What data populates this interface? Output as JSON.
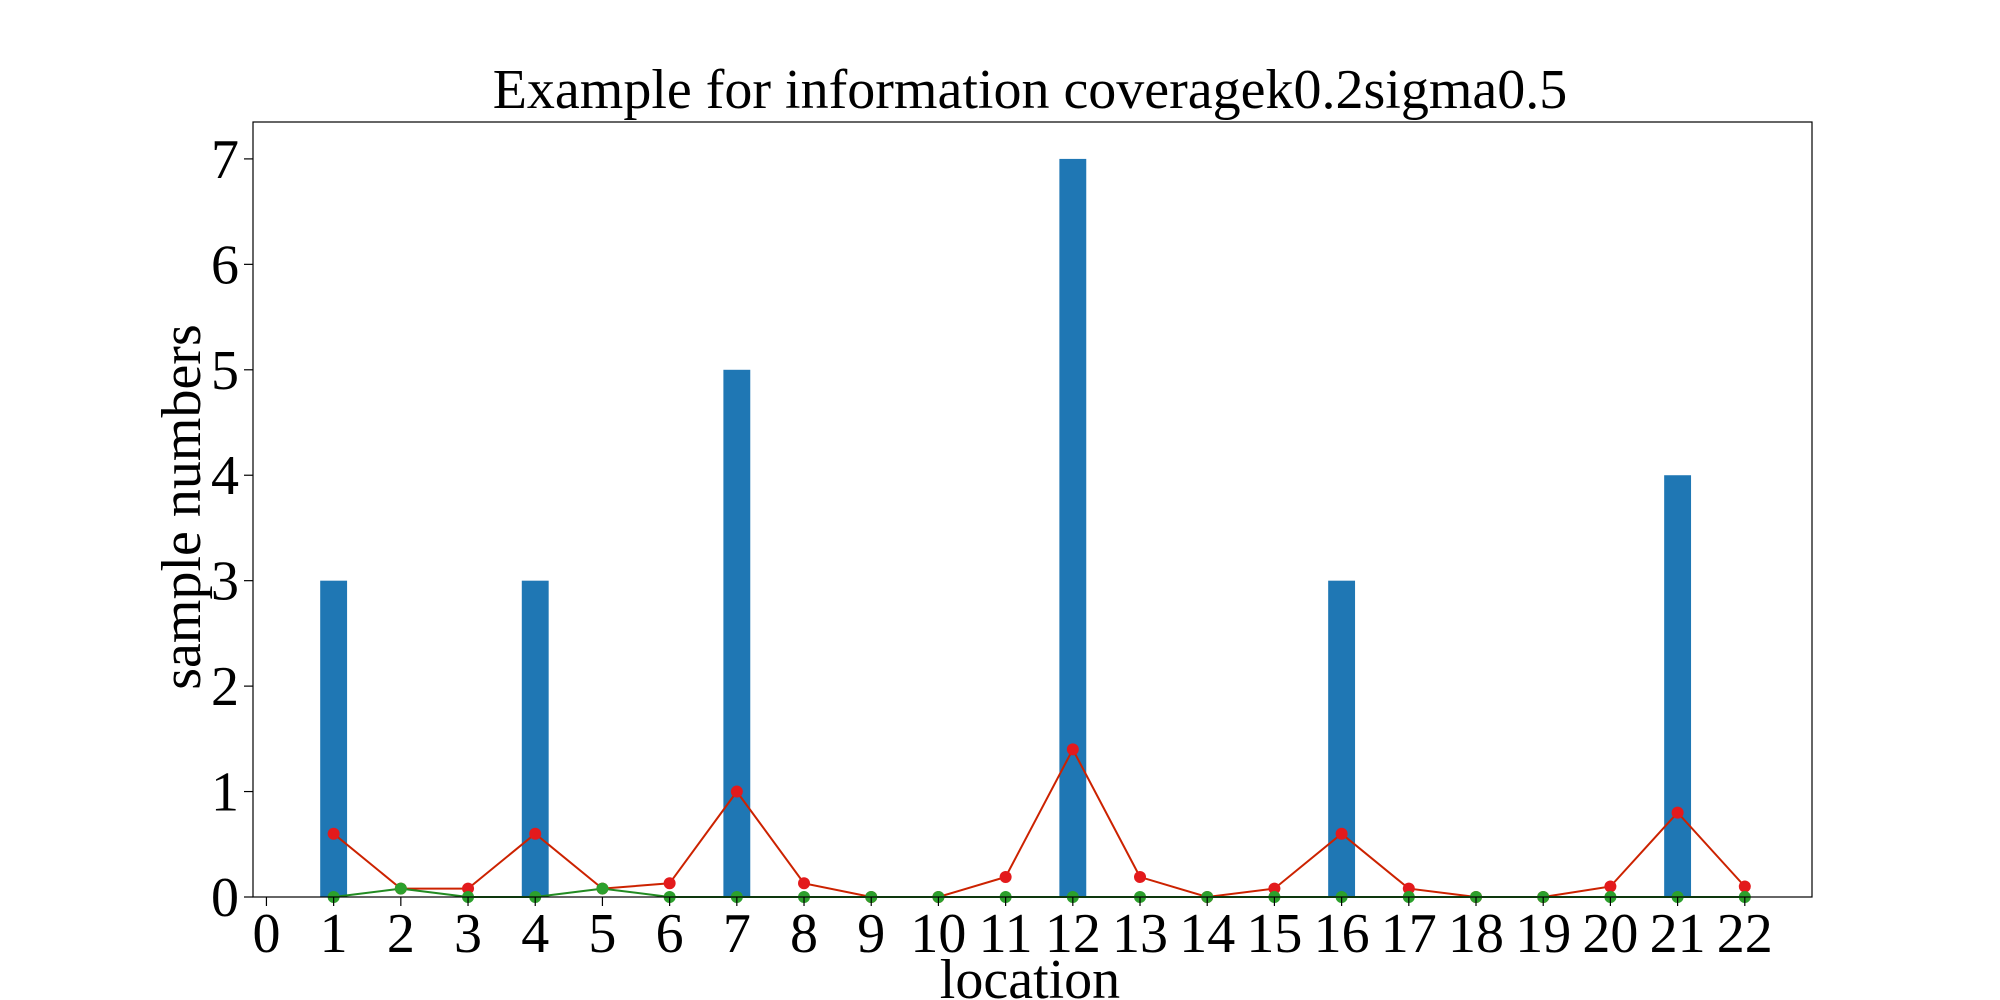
{
  "chart_data": {
    "type": "bar",
    "title": "Example for information coveragek0.2sigma0.5",
    "xlabel": "location",
    "ylabel": "sample numbers",
    "x": [
      0,
      1,
      2,
      3,
      4,
      5,
      6,
      7,
      8,
      9,
      10,
      11,
      12,
      13,
      14,
      15,
      16,
      17,
      18,
      19,
      20,
      21,
      22
    ],
    "xlim": [
      -0.2,
      23
    ],
    "ylim": [
      0,
      7.35
    ],
    "yticks": [
      0,
      1,
      2,
      3,
      4,
      5,
      6,
      7
    ],
    "grid": false,
    "bars": {
      "name": "sample numbers",
      "color": "#1f77b4",
      "width": 0.4,
      "points": [
        {
          "x": 1,
          "y": 3
        },
        {
          "x": 4,
          "y": 3
        },
        {
          "x": 7,
          "y": 5
        },
        {
          "x": 12,
          "y": 7
        },
        {
          "x": 16,
          "y": 3
        },
        {
          "x": 21,
          "y": 4
        }
      ]
    },
    "series": [
      {
        "name": "red line",
        "type": "line",
        "color": "#e31a1c",
        "line_color": "#cc2200",
        "marker": "circle",
        "x": [
          1,
          2,
          3,
          4,
          5,
          6,
          7,
          8,
          9,
          10,
          11,
          12,
          13,
          14,
          15,
          16,
          17,
          18,
          19,
          20,
          21,
          22
        ],
        "values": [
          0.6,
          0.08,
          0.08,
          0.6,
          0.08,
          0.13,
          1.0,
          0.13,
          0,
          0,
          0.19,
          1.4,
          0.19,
          0,
          0.08,
          0.6,
          0.08,
          0,
          0,
          0.1,
          0.8,
          0.1
        ]
      },
      {
        "name": "green line",
        "type": "line",
        "color": "#2ca02c",
        "line_color": "#228b22",
        "marker": "circle",
        "x": [
          1,
          2,
          3,
          4,
          5,
          6,
          7,
          8,
          9,
          10,
          11,
          12,
          13,
          14,
          15,
          16,
          17,
          18,
          19,
          20,
          21,
          22
        ],
        "values": [
          0,
          0.08,
          0,
          0,
          0.08,
          0,
          0,
          0,
          0,
          0,
          0,
          0,
          0,
          0,
          0,
          0,
          0,
          0,
          0,
          0,
          0,
          0
        ]
      }
    ]
  }
}
